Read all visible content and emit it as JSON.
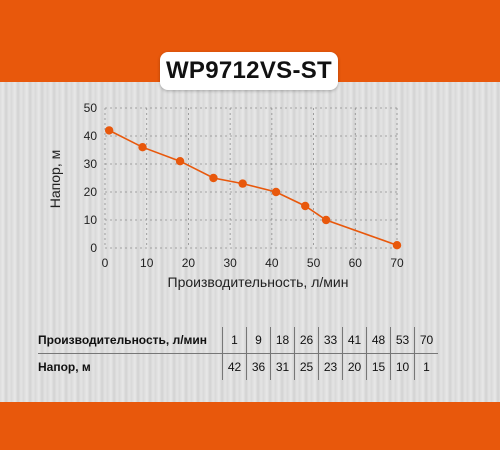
{
  "title": "WP9712VS-ST",
  "chart_data": {
    "type": "line",
    "xlabel": "Производительность, л/мин",
    "ylabel": "Напор, м",
    "xlim": [
      0,
      70
    ],
    "ylim": [
      0,
      50
    ],
    "x_ticks": [
      0,
      10,
      20,
      30,
      40,
      50,
      60,
      70
    ],
    "y_ticks": [
      0,
      10,
      20,
      30,
      40,
      50
    ],
    "grid": true,
    "color": "#e8580c",
    "x": [
      1,
      9,
      18,
      26,
      33,
      41,
      48,
      53,
      70
    ],
    "y": [
      42,
      36,
      31,
      25,
      23,
      20,
      15,
      10,
      1
    ]
  },
  "table": {
    "row1_label": "Производительность, л/мин",
    "row2_label": "Напор, м",
    "row1_values": [
      "1",
      "9",
      "18",
      "26",
      "33",
      "41",
      "48",
      "53",
      "70"
    ],
    "row2_values": [
      "42",
      "36",
      "31",
      "25",
      "23",
      "20",
      "15",
      "10",
      "1"
    ]
  }
}
